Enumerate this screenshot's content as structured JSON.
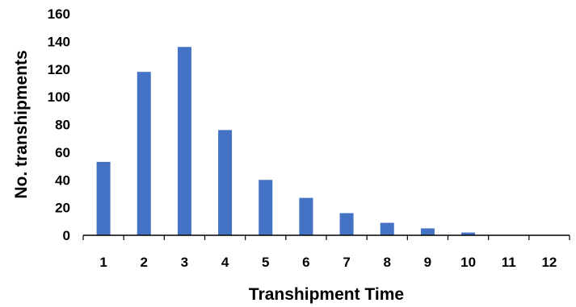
{
  "chart_data": {
    "type": "bar",
    "title": "",
    "xlabel": "Transhipment Time",
    "ylabel": "No. transhipments",
    "categories": [
      "1",
      "2",
      "3",
      "4",
      "5",
      "6",
      "7",
      "8",
      "9",
      "10",
      "11",
      "12"
    ],
    "values": [
      53,
      118,
      136,
      76,
      40,
      27,
      16,
      9,
      5,
      2,
      0,
      0
    ],
    "ylim": [
      0,
      160
    ],
    "yticks": [
      "0",
      "20",
      "40",
      "60",
      "80",
      "100",
      "120",
      "140",
      "160"
    ],
    "grid": false,
    "legend": "none",
    "bar_color": "#4472C4"
  }
}
